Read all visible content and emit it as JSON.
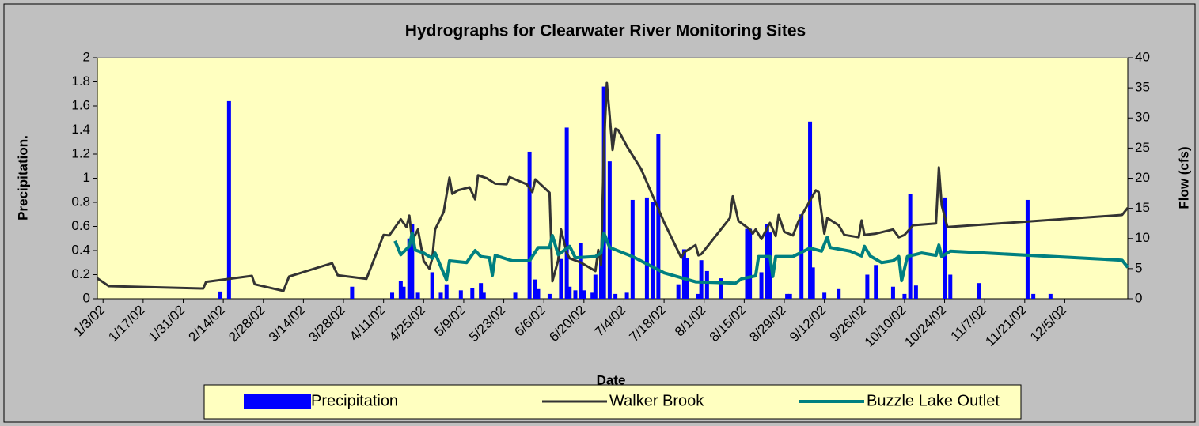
{
  "chart_data": {
    "type": "combo",
    "title": "Hydrographs for Clearwater River Monitoring Sites",
    "xlabel": "Date",
    "ylabel": "Precipitation.",
    "y2label": "Flow (cfs)",
    "xlim": [
      "2002-01-01",
      "2002-12-27"
    ],
    "xticks": [
      {
        "value": "2002-01-03",
        "label": "1/3/02"
      },
      {
        "value": "2002-01-17",
        "label": "1/17/02"
      },
      {
        "value": "2002-01-31",
        "label": "1/31/02"
      },
      {
        "value": "2002-02-14",
        "label": "2/14/02"
      },
      {
        "value": "2002-02-28",
        "label": "2/28/02"
      },
      {
        "value": "2002-03-14",
        "label": "3/14/02"
      },
      {
        "value": "2002-03-28",
        "label": "3/28/02"
      },
      {
        "value": "2002-04-11",
        "label": "4/11/02"
      },
      {
        "value": "2002-04-25",
        "label": "4/25/02"
      },
      {
        "value": "2002-05-09",
        "label": "5/9/02"
      },
      {
        "value": "2002-05-23",
        "label": "5/23/02"
      },
      {
        "value": "2002-06-06",
        "label": "6/6/02"
      },
      {
        "value": "2002-06-20",
        "label": "6/20/02"
      },
      {
        "value": "2002-07-04",
        "label": "7/4/02"
      },
      {
        "value": "2002-07-18",
        "label": "7/18/02"
      },
      {
        "value": "2002-08-01",
        "label": "8/1/02"
      },
      {
        "value": "2002-08-15",
        "label": "8/15/02"
      },
      {
        "value": "2002-08-29",
        "label": "8/29/02"
      },
      {
        "value": "2002-09-12",
        "label": "9/12/02"
      },
      {
        "value": "2002-09-26",
        "label": "9/26/02"
      },
      {
        "value": "2002-10-10",
        "label": "10/10/02"
      },
      {
        "value": "2002-10-24",
        "label": "10/24/02"
      },
      {
        "value": "2002-11-07",
        "label": "11/7/02"
      },
      {
        "value": "2002-11-21",
        "label": "11/21/02"
      },
      {
        "value": "2002-12-05",
        "label": "12/5/02"
      }
    ],
    "ylim": [
      0,
      2
    ],
    "yticks": [
      0,
      0.2,
      0.4,
      0.6,
      0.8,
      1,
      1.2,
      1.4,
      1.6,
      1.8,
      2
    ],
    "y2lim": [
      0,
      40
    ],
    "y2ticks": [
      0,
      5,
      10,
      15,
      20,
      25,
      30,
      35,
      40
    ],
    "grid": false,
    "legend": "bottom",
    "series": [
      {
        "name": "Precipitation",
        "type": "bar",
        "color": "#0000ff",
        "axis": "y",
        "x": [
          "2002-02-13",
          "2002-02-16",
          "2002-03-31",
          "2002-04-14",
          "2002-04-17",
          "2002-04-18",
          "2002-04-20",
          "2002-04-21",
          "2002-04-23",
          "2002-04-28",
          "2002-05-01",
          "2002-05-03",
          "2002-05-08",
          "2002-05-12",
          "2002-05-15",
          "2002-05-16",
          "2002-05-27",
          "2002-06-01",
          "2002-06-03",
          "2002-06-04",
          "2002-06-08",
          "2002-06-12",
          "2002-06-14",
          "2002-06-15",
          "2002-06-17",
          "2002-06-19",
          "2002-06-20",
          "2002-06-23",
          "2002-06-24",
          "2002-06-26",
          "2002-06-27",
          "2002-06-29",
          "2002-07-01",
          "2002-07-05",
          "2002-07-07",
          "2002-07-12",
          "2002-07-14",
          "2002-07-16",
          "2002-07-23",
          "2002-07-25",
          "2002-07-26",
          "2002-07-30",
          "2002-07-31",
          "2002-08-02",
          "2002-08-07",
          "2002-08-16",
          "2002-08-17",
          "2002-08-21",
          "2002-08-23",
          "2002-08-24",
          "2002-08-30",
          "2002-08-31",
          "2002-09-04",
          "2002-09-07",
          "2002-09-08",
          "2002-09-12",
          "2002-09-17",
          "2002-09-27",
          "2002-09-30",
          "2002-10-06",
          "2002-10-10",
          "2002-10-12",
          "2002-10-14",
          "2002-10-24",
          "2002-10-26",
          "2002-11-05",
          "2002-11-22",
          "2002-11-24",
          "2002-11-30"
        ],
        "values": [
          0.06,
          1.64,
          0.1,
          0.05,
          0.15,
          0.1,
          0.5,
          0.62,
          0.05,
          0.22,
          0.05,
          0.12,
          0.07,
          0.09,
          0.13,
          0.05,
          0.05,
          1.22,
          0.16,
          0.08,
          0.04,
          0.33,
          1.42,
          0.1,
          0.07,
          0.46,
          0.07,
          0.05,
          0.2,
          0.38,
          1.76,
          1.14,
          0.04,
          0.05,
          0.82,
          0.84,
          0.8,
          1.37,
          0.12,
          0.41,
          0.34,
          0.04,
          0.32,
          0.23,
          0.17,
          0.58,
          0.58,
          0.22,
          0.62,
          0.55,
          0.04,
          0.04,
          0.7,
          1.47,
          0.26,
          0.05,
          0.08,
          0.2,
          0.28,
          0.1,
          0.04,
          0.87,
          0.11,
          0.84,
          0.2,
          0.13,
          0.82,
          0.04,
          0.04
        ]
      },
      {
        "name": "Walker Brook",
        "type": "line",
        "color": "#333333",
        "axis": "y2",
        "x": [
          "2002-01-01",
          "2002-01-05",
          "2002-02-07",
          "2002-02-08",
          "2002-02-24",
          "2002-02-25",
          "2002-03-07",
          "2002-03-09",
          "2002-03-24",
          "2002-03-26",
          "2002-04-05",
          "2002-04-11",
          "2002-04-13",
          "2002-04-17",
          "2002-04-19",
          "2002-04-20",
          "2002-04-21",
          "2002-04-23",
          "2002-04-25",
          "2002-04-27",
          "2002-04-28",
          "2002-04-29",
          "2002-05-02",
          "2002-05-04",
          "2002-05-05",
          "2002-05-07",
          "2002-05-11",
          "2002-05-13",
          "2002-05-14",
          "2002-05-17",
          "2002-05-20",
          "2002-05-24",
          "2002-05-25",
          "2002-05-31",
          "2002-06-02",
          "2002-06-03",
          "2002-06-08",
          "2002-06-09",
          "2002-06-11",
          "2002-06-12",
          "2002-06-14",
          "2002-06-15",
          "2002-06-19",
          "2002-06-24",
          "2002-06-25",
          "2002-06-26",
          "2002-06-27",
          "2002-06-28",
          "2002-06-29",
          "2002-06-30",
          "2002-07-01",
          "2002-07-02",
          "2002-07-05",
          "2002-07-10",
          "2002-07-18",
          "2002-07-24",
          "2002-07-25",
          "2002-07-29",
          "2002-07-30",
          "2002-07-31",
          "2002-08-10",
          "2002-08-11",
          "2002-08-13",
          "2002-08-17",
          "2002-08-18",
          "2002-08-19",
          "2002-08-21",
          "2002-08-24",
          "2002-08-26",
          "2002-08-27",
          "2002-08-29",
          "2002-09-01",
          "2002-09-03",
          "2002-09-09",
          "2002-09-10",
          "2002-09-12",
          "2002-09-13",
          "2002-09-17",
          "2002-09-19",
          "2002-09-24",
          "2002-09-25",
          "2002-09-26",
          "2002-09-30",
          "2002-10-06",
          "2002-10-08",
          "2002-10-10",
          "2002-10-13",
          "2002-10-21",
          "2002-10-22",
          "2002-10-23",
          "2002-10-25",
          "2002-12-25",
          "2002-12-27"
        ],
        "values": [
          3.4,
          2.1,
          1.7,
          2.8,
          3.8,
          2.4,
          1.3,
          3.7,
          5.9,
          3.9,
          3.3,
          10.6,
          10.5,
          13.2,
          11.9,
          13.8,
          9.6,
          11.5,
          6.3,
          5.0,
          6.7,
          11.5,
          14.4,
          20.1,
          17.4,
          18.0,
          18.5,
          16.5,
          20.5,
          20.0,
          19.1,
          19.0,
          20.2,
          19.0,
          17.7,
          19.8,
          17.6,
          2.9,
          6.4,
          11.5,
          7.6,
          6.7,
          6.0,
          4.6,
          8.1,
          5.6,
          25.3,
          35.8,
          30.3,
          24.7,
          28.2,
          28.0,
          25.3,
          21.5,
          12.7,
          6.8,
          7.7,
          8.9,
          7.2,
          7.4,
          13.4,
          17.0,
          12.9,
          11.5,
          10.8,
          11.5,
          9.9,
          12.6,
          10.4,
          13.9,
          11.1,
          10.5,
          12.9,
          18.0,
          17.7,
          10.8,
          13.4,
          12.2,
          10.6,
          10.2,
          13.0,
          10.6,
          10.8,
          11.5,
          10.2,
          10.6,
          12.2,
          12.5,
          21.8,
          15.5,
          11.9,
          13.9,
          15.1
        ]
      },
      {
        "name": "Buzzle Lake Outlet",
        "type": "line",
        "color": "#008080",
        "axis": "y2",
        "x": [
          "2002-04-15",
          "2002-04-17",
          "2002-04-20",
          "2002-04-21",
          "2002-04-22",
          "2002-04-25",
          "2002-04-28",
          "2002-04-29",
          "2002-05-03",
          "2002-05-04",
          "2002-05-10",
          "2002-05-13",
          "2002-05-15",
          "2002-05-18",
          "2002-05-19",
          "2002-05-20",
          "2002-05-26",
          "2002-06-01",
          "2002-06-04",
          "2002-06-08",
          "2002-06-09",
          "2002-06-11",
          "2002-06-15",
          "2002-06-17",
          "2002-06-24",
          "2002-06-26",
          "2002-06-27",
          "2002-06-29",
          "2002-07-07",
          "2002-07-18",
          "2002-07-29",
          "2002-08-12",
          "2002-08-14",
          "2002-08-19",
          "2002-08-20",
          "2002-08-24",
          "2002-08-25",
          "2002-08-26",
          "2002-09-01",
          "2002-09-07",
          "2002-09-11",
          "2002-09-13",
          "2002-09-14",
          "2002-09-21",
          "2002-09-25",
          "2002-09-26",
          "2002-09-28",
          "2002-10-02",
          "2002-10-06",
          "2002-10-08",
          "2002-10-09",
          "2002-10-11",
          "2002-10-16",
          "2002-10-21",
          "2002-10-22",
          "2002-10-23",
          "2002-10-26",
          "2002-12-25",
          "2002-12-27"
        ],
        "values": [
          9.6,
          7.3,
          8.7,
          10.9,
          8.1,
          7.6,
          6.7,
          7.6,
          3.1,
          6.3,
          6.0,
          8.0,
          7.0,
          6.8,
          3.9,
          7.2,
          6.3,
          6.3,
          8.5,
          8.5,
          10.5,
          7.3,
          8.7,
          6.8,
          7.0,
          7.6,
          10.9,
          8.5,
          7.0,
          4.3,
          2.8,
          2.6,
          3.3,
          3.8,
          7.0,
          7.0,
          3.7,
          7.0,
          7.0,
          8.4,
          7.9,
          10.2,
          8.5,
          7.9,
          7.1,
          8.7,
          7.1,
          6.0,
          6.3,
          7.0,
          3.0,
          7.0,
          7.6,
          7.2,
          8.9,
          7.0,
          7.9,
          6.4,
          5.2
        ]
      }
    ]
  }
}
